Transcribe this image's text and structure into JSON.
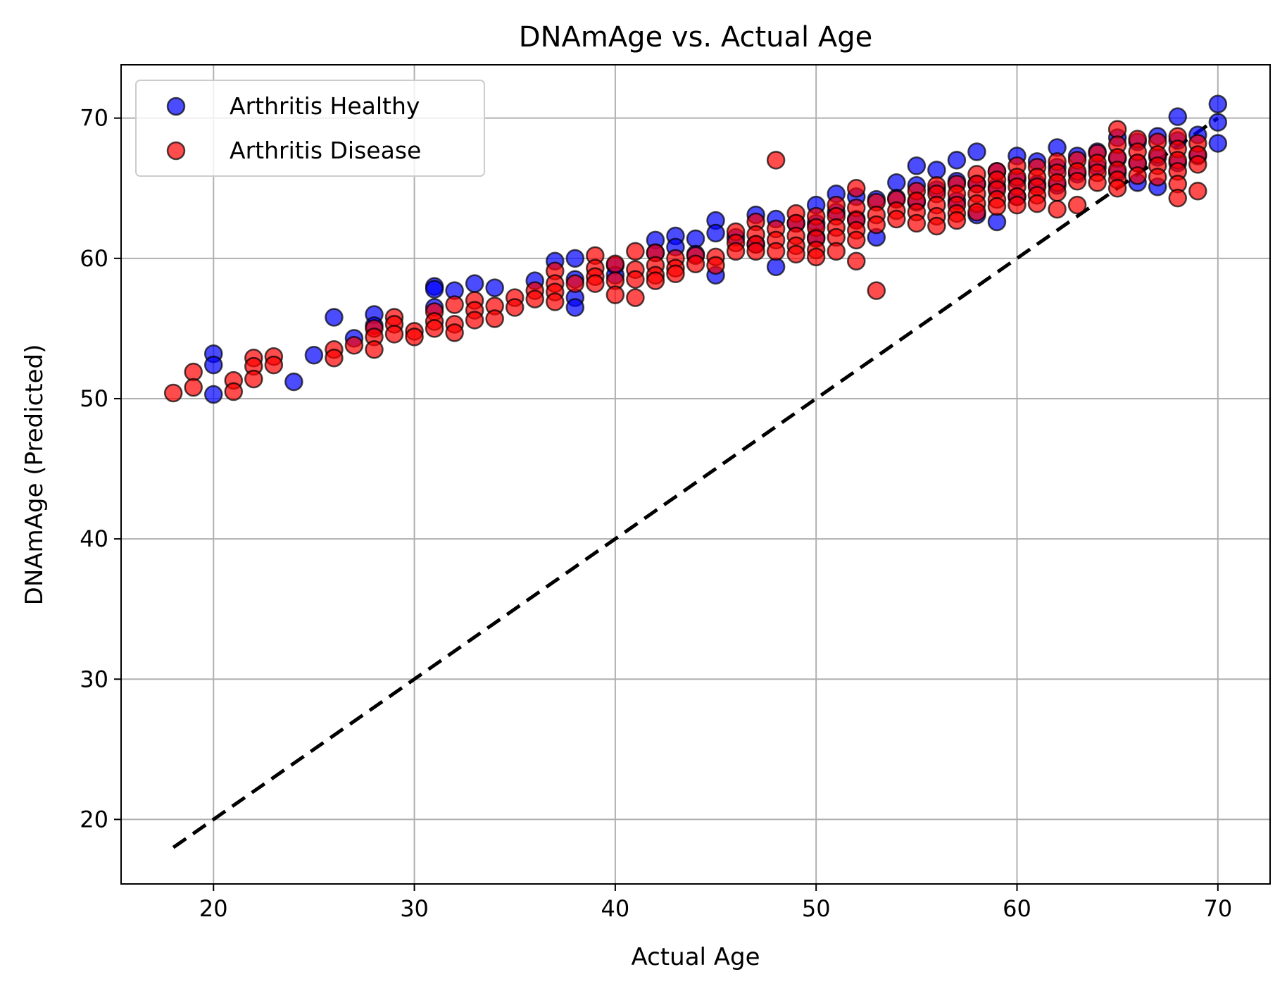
{
  "chart_data": {
    "type": "scatter",
    "title": "DNAmAge vs. Actual Age",
    "xlabel": "Actual Age",
    "ylabel": "DNAmAge (Predicted)",
    "xlim": [
      15.4,
      72.6
    ],
    "ylim": [
      15.4,
      73.8
    ],
    "x_ticks": [
      "20",
      "30",
      "40",
      "50",
      "60",
      "70"
    ],
    "y_ticks": [
      "20",
      "30",
      "40",
      "50",
      "60",
      "70"
    ],
    "grid": true,
    "legend_position": "top-left",
    "reference_line": {
      "style": "dashed",
      "color": "#000000",
      "x": [
        18,
        70
      ],
      "y": [
        18,
        70
      ]
    },
    "series": [
      {
        "name": "Arthritis Healthy",
        "color": "#0000ff",
        "points": [
          [
            20,
            53.2
          ],
          [
            20,
            52.4
          ],
          [
            20,
            50.3
          ],
          [
            24,
            51.2
          ],
          [
            25,
            53.1
          ],
          [
            26,
            55.8
          ],
          [
            27,
            54.3
          ],
          [
            28,
            56
          ],
          [
            28,
            55.2
          ],
          [
            31,
            58
          ],
          [
            31,
            57.8
          ],
          [
            31,
            56.5
          ],
          [
            32,
            57.7
          ],
          [
            33,
            58.2
          ],
          [
            34,
            57.9
          ],
          [
            36,
            58.4
          ],
          [
            37,
            59.8
          ],
          [
            38,
            60
          ],
          [
            38,
            58.5
          ],
          [
            38,
            57.2
          ],
          [
            38,
            56.5
          ],
          [
            40,
            59.5
          ],
          [
            40,
            58.8
          ],
          [
            42,
            61.3
          ],
          [
            42,
            60.4
          ],
          [
            43,
            61.6
          ],
          [
            43,
            60.8
          ],
          [
            44,
            61.4
          ],
          [
            44,
            60.3
          ],
          [
            45,
            62.7
          ],
          [
            45,
            61.8
          ],
          [
            45,
            58.8
          ],
          [
            46,
            61.5
          ],
          [
            47,
            63.1
          ],
          [
            47,
            61
          ],
          [
            48,
            62.8
          ],
          [
            48,
            59.4
          ],
          [
            49,
            62.5
          ],
          [
            50,
            63.8
          ],
          [
            50,
            62.5
          ],
          [
            50,
            61.5
          ],
          [
            51,
            64.6
          ],
          [
            51,
            63.3
          ],
          [
            52,
            64.4
          ],
          [
            52,
            62.8
          ],
          [
            53,
            64.2
          ],
          [
            53,
            61.5
          ],
          [
            54,
            65.4
          ],
          [
            54,
            64.3
          ],
          [
            55,
            66.6
          ],
          [
            55,
            65.2
          ],
          [
            55,
            64
          ],
          [
            56,
            66.3
          ],
          [
            56,
            64.9
          ],
          [
            57,
            67
          ],
          [
            57,
            65.5
          ],
          [
            57,
            64.1
          ],
          [
            58,
            67.6
          ],
          [
            58,
            65.3
          ],
          [
            58,
            63.1
          ],
          [
            59,
            66.2
          ],
          [
            59,
            65.1
          ],
          [
            59,
            62.6
          ],
          [
            60,
            67.3
          ],
          [
            60,
            65.6
          ],
          [
            60,
            64.4
          ],
          [
            61,
            66.9
          ],
          [
            61,
            65.3
          ],
          [
            62,
            67.9
          ],
          [
            62,
            66.5
          ],
          [
            62,
            65.2
          ],
          [
            63,
            67.3
          ],
          [
            63,
            66
          ],
          [
            64,
            67.6
          ],
          [
            64,
            66.5
          ],
          [
            65,
            68.6
          ],
          [
            65,
            67.1
          ],
          [
            65,
            66.1
          ],
          [
            66,
            68.3
          ],
          [
            66,
            66.8
          ],
          [
            66,
            65.4
          ],
          [
            67,
            68.7
          ],
          [
            67,
            67.2
          ],
          [
            67,
            65.1
          ],
          [
            68,
            70.1
          ],
          [
            68,
            68.4
          ],
          [
            68,
            66.8
          ],
          [
            69,
            68.8
          ],
          [
            69,
            67.3
          ],
          [
            70,
            71
          ],
          [
            70,
            69.7
          ],
          [
            70,
            68.2
          ]
        ]
      },
      {
        "name": "Arthritis Disease",
        "color": "#ff0000",
        "points": [
          [
            18,
            50.4
          ],
          [
            19,
            51.9
          ],
          [
            19,
            50.8
          ],
          [
            21,
            51.3
          ],
          [
            21,
            50.5
          ],
          [
            22,
            52.9
          ],
          [
            22,
            52.3
          ],
          [
            22,
            51.4
          ],
          [
            23,
            53
          ],
          [
            23,
            52.4
          ],
          [
            26,
            53.5
          ],
          [
            26,
            52.9
          ],
          [
            27,
            53.8
          ],
          [
            28,
            55
          ],
          [
            28,
            54.4
          ],
          [
            28,
            53.5
          ],
          [
            29,
            55.8
          ],
          [
            29,
            55.3
          ],
          [
            29,
            54.6
          ],
          [
            30,
            54.8
          ],
          [
            30,
            54.4
          ],
          [
            31,
            56.2
          ],
          [
            31,
            55.5
          ],
          [
            31,
            55
          ],
          [
            32,
            56.7
          ],
          [
            32,
            55.3
          ],
          [
            32,
            54.7
          ],
          [
            33,
            57
          ],
          [
            33,
            56.3
          ],
          [
            33,
            55.6
          ],
          [
            34,
            56.6
          ],
          [
            34,
            55.7
          ],
          [
            35,
            57.2
          ],
          [
            35,
            56.5
          ],
          [
            36,
            57.7
          ],
          [
            36,
            57.1
          ],
          [
            37,
            59.1
          ],
          [
            37,
            58.2
          ],
          [
            37,
            57.6
          ],
          [
            37,
            56.9
          ],
          [
            38,
            58.2
          ],
          [
            39,
            60.2
          ],
          [
            39,
            59.3
          ],
          [
            39,
            58.7
          ],
          [
            39,
            58.2
          ],
          [
            40,
            59.6
          ],
          [
            40,
            58.4
          ],
          [
            40,
            57.4
          ],
          [
            41,
            60.5
          ],
          [
            41,
            59.2
          ],
          [
            41,
            58.5
          ],
          [
            41,
            57.2
          ],
          [
            42,
            60.4
          ],
          [
            42,
            59.5
          ],
          [
            42,
            58.8
          ],
          [
            42,
            58.4
          ],
          [
            43,
            60
          ],
          [
            43,
            59.3
          ],
          [
            43,
            58.9
          ],
          [
            44,
            60.2
          ],
          [
            44,
            59.6
          ],
          [
            45,
            60.1
          ],
          [
            45,
            59.5
          ],
          [
            46,
            61.9
          ],
          [
            46,
            61.1
          ],
          [
            46,
            60.5
          ],
          [
            47,
            62.6
          ],
          [
            47,
            61.7
          ],
          [
            47,
            61
          ],
          [
            47,
            60.5
          ],
          [
            48,
            67
          ],
          [
            48,
            62.1
          ],
          [
            48,
            61.3
          ],
          [
            48,
            60.5
          ],
          [
            49,
            63.2
          ],
          [
            49,
            62.5
          ],
          [
            49,
            61.6
          ],
          [
            49,
            60.9
          ],
          [
            49,
            60.3
          ],
          [
            50,
            63
          ],
          [
            50,
            62.2
          ],
          [
            50,
            61.4
          ],
          [
            50,
            60.6
          ],
          [
            50,
            60.1
          ],
          [
            51,
            63.8
          ],
          [
            51,
            63
          ],
          [
            51,
            62.2
          ],
          [
            51,
            61.5
          ],
          [
            51,
            60.5
          ],
          [
            52,
            65
          ],
          [
            52,
            63.6
          ],
          [
            52,
            62.7
          ],
          [
            52,
            62
          ],
          [
            52,
            61.3
          ],
          [
            52,
            59.8
          ],
          [
            53,
            64
          ],
          [
            53,
            63.1
          ],
          [
            53,
            62.4
          ],
          [
            53,
            57.7
          ],
          [
            54,
            64.2
          ],
          [
            54,
            63.4
          ],
          [
            54,
            62.8
          ],
          [
            55,
            64.8
          ],
          [
            55,
            64.1
          ],
          [
            55,
            63.3
          ],
          [
            55,
            62.5
          ],
          [
            56,
            65.2
          ],
          [
            56,
            64.6
          ],
          [
            56,
            63.8
          ],
          [
            56,
            63
          ],
          [
            56,
            62.3
          ],
          [
            57,
            65.3
          ],
          [
            57,
            64.6
          ],
          [
            57,
            63.8
          ],
          [
            57,
            63.2
          ],
          [
            57,
            62.7
          ],
          [
            58,
            66
          ],
          [
            58,
            65.3
          ],
          [
            58,
            64.6
          ],
          [
            58,
            63.9
          ],
          [
            58,
            63.3
          ],
          [
            59,
            66.2
          ],
          [
            59,
            65.6
          ],
          [
            59,
            64.9
          ],
          [
            59,
            64.2
          ],
          [
            59,
            63.7
          ],
          [
            60,
            66.6
          ],
          [
            60,
            65.8
          ],
          [
            60,
            65.1
          ],
          [
            60,
            64.4
          ],
          [
            60,
            63.8
          ],
          [
            61,
            66.5
          ],
          [
            61,
            65.8
          ],
          [
            61,
            65.1
          ],
          [
            61,
            64.5
          ],
          [
            61,
            63.9
          ],
          [
            62,
            66.9
          ],
          [
            62,
            66.1
          ],
          [
            62,
            65.4
          ],
          [
            62,
            64.7
          ],
          [
            62,
            63.5
          ],
          [
            63,
            67
          ],
          [
            63,
            66.2
          ],
          [
            63,
            65.5
          ],
          [
            63,
            63.8
          ],
          [
            64,
            67.5
          ],
          [
            64,
            66.8
          ],
          [
            64,
            66.1
          ],
          [
            64,
            65.4
          ],
          [
            65,
            69.2
          ],
          [
            65,
            68.1
          ],
          [
            65,
            67.2
          ],
          [
            65,
            66.3
          ],
          [
            65,
            65.6
          ],
          [
            65,
            65
          ],
          [
            66,
            68.5
          ],
          [
            66,
            67.6
          ],
          [
            66,
            66.8
          ],
          [
            66,
            65.9
          ],
          [
            67,
            68.3
          ],
          [
            67,
            67.4
          ],
          [
            67,
            66.6
          ],
          [
            67,
            65.8
          ],
          [
            68,
            68.7
          ],
          [
            68,
            67.8
          ],
          [
            68,
            67
          ],
          [
            68,
            66.2
          ],
          [
            68,
            65.3
          ],
          [
            68,
            64.3
          ],
          [
            69,
            68.2
          ],
          [
            69,
            67.4
          ],
          [
            69,
            66.7
          ],
          [
            69,
            64.8
          ]
        ]
      }
    ]
  }
}
